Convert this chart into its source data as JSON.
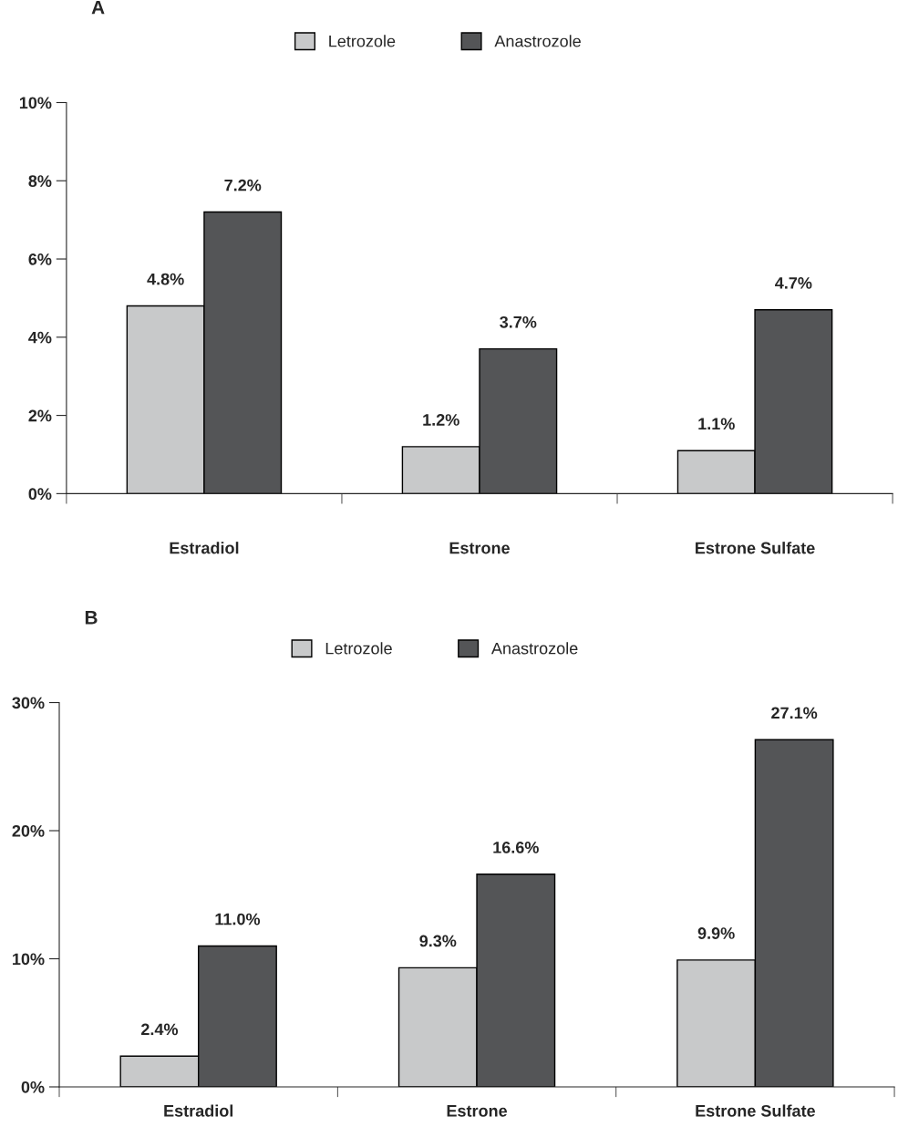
{
  "chart_data": [
    {
      "type": "bar",
      "title": "A",
      "categories": [
        "Estradiol",
        "Estrone",
        "Estrone Sulfate"
      ],
      "series": [
        {
          "name": "Letrozole",
          "color": "#c8c9ca",
          "values": [
            4.8,
            1.2,
            1.1
          ],
          "value_labels": [
            "4.8%",
            "1.2%",
            "1.1%"
          ]
        },
        {
          "name": "Anastrozole",
          "color": "#545557",
          "values": [
            7.2,
            3.7,
            4.7
          ],
          "value_labels": [
            "7.2%",
            "3.7%",
            "4.7%"
          ]
        }
      ],
      "ylim": [
        0,
        10
      ],
      "yticks": [
        {
          "value": 0,
          "label": "0%"
        },
        {
          "value": 2,
          "label": "2%"
        },
        {
          "value": 4,
          "label": "4%"
        },
        {
          "value": 6,
          "label": "6%"
        },
        {
          "value": 8,
          "label": "8%"
        },
        {
          "value": 10,
          "label": "10%"
        }
      ],
      "legend": "top",
      "grid": false
    },
    {
      "type": "bar",
      "title": "B",
      "categories": [
        "Estradiol",
        "Estrone",
        "Estrone Sulfate"
      ],
      "series": [
        {
          "name": "Letrozole",
          "color": "#c8c9ca",
          "values": [
            2.4,
            9.3,
            9.9
          ],
          "value_labels": [
            "2.4%",
            "9.3%",
            "9.9%"
          ]
        },
        {
          "name": "Anastrozole",
          "color": "#545557",
          "values": [
            11.0,
            16.6,
            27.1
          ],
          "value_labels": [
            "11.0%",
            "16.6%",
            "27.1%"
          ]
        }
      ],
      "ylim": [
        0,
        30
      ],
      "yticks": [
        {
          "value": 0,
          "label": "0%"
        },
        {
          "value": 10,
          "label": "10%"
        },
        {
          "value": 20,
          "label": "20%"
        },
        {
          "value": 30,
          "label": "30%"
        }
      ],
      "legend": "top",
      "grid": false
    }
  ]
}
